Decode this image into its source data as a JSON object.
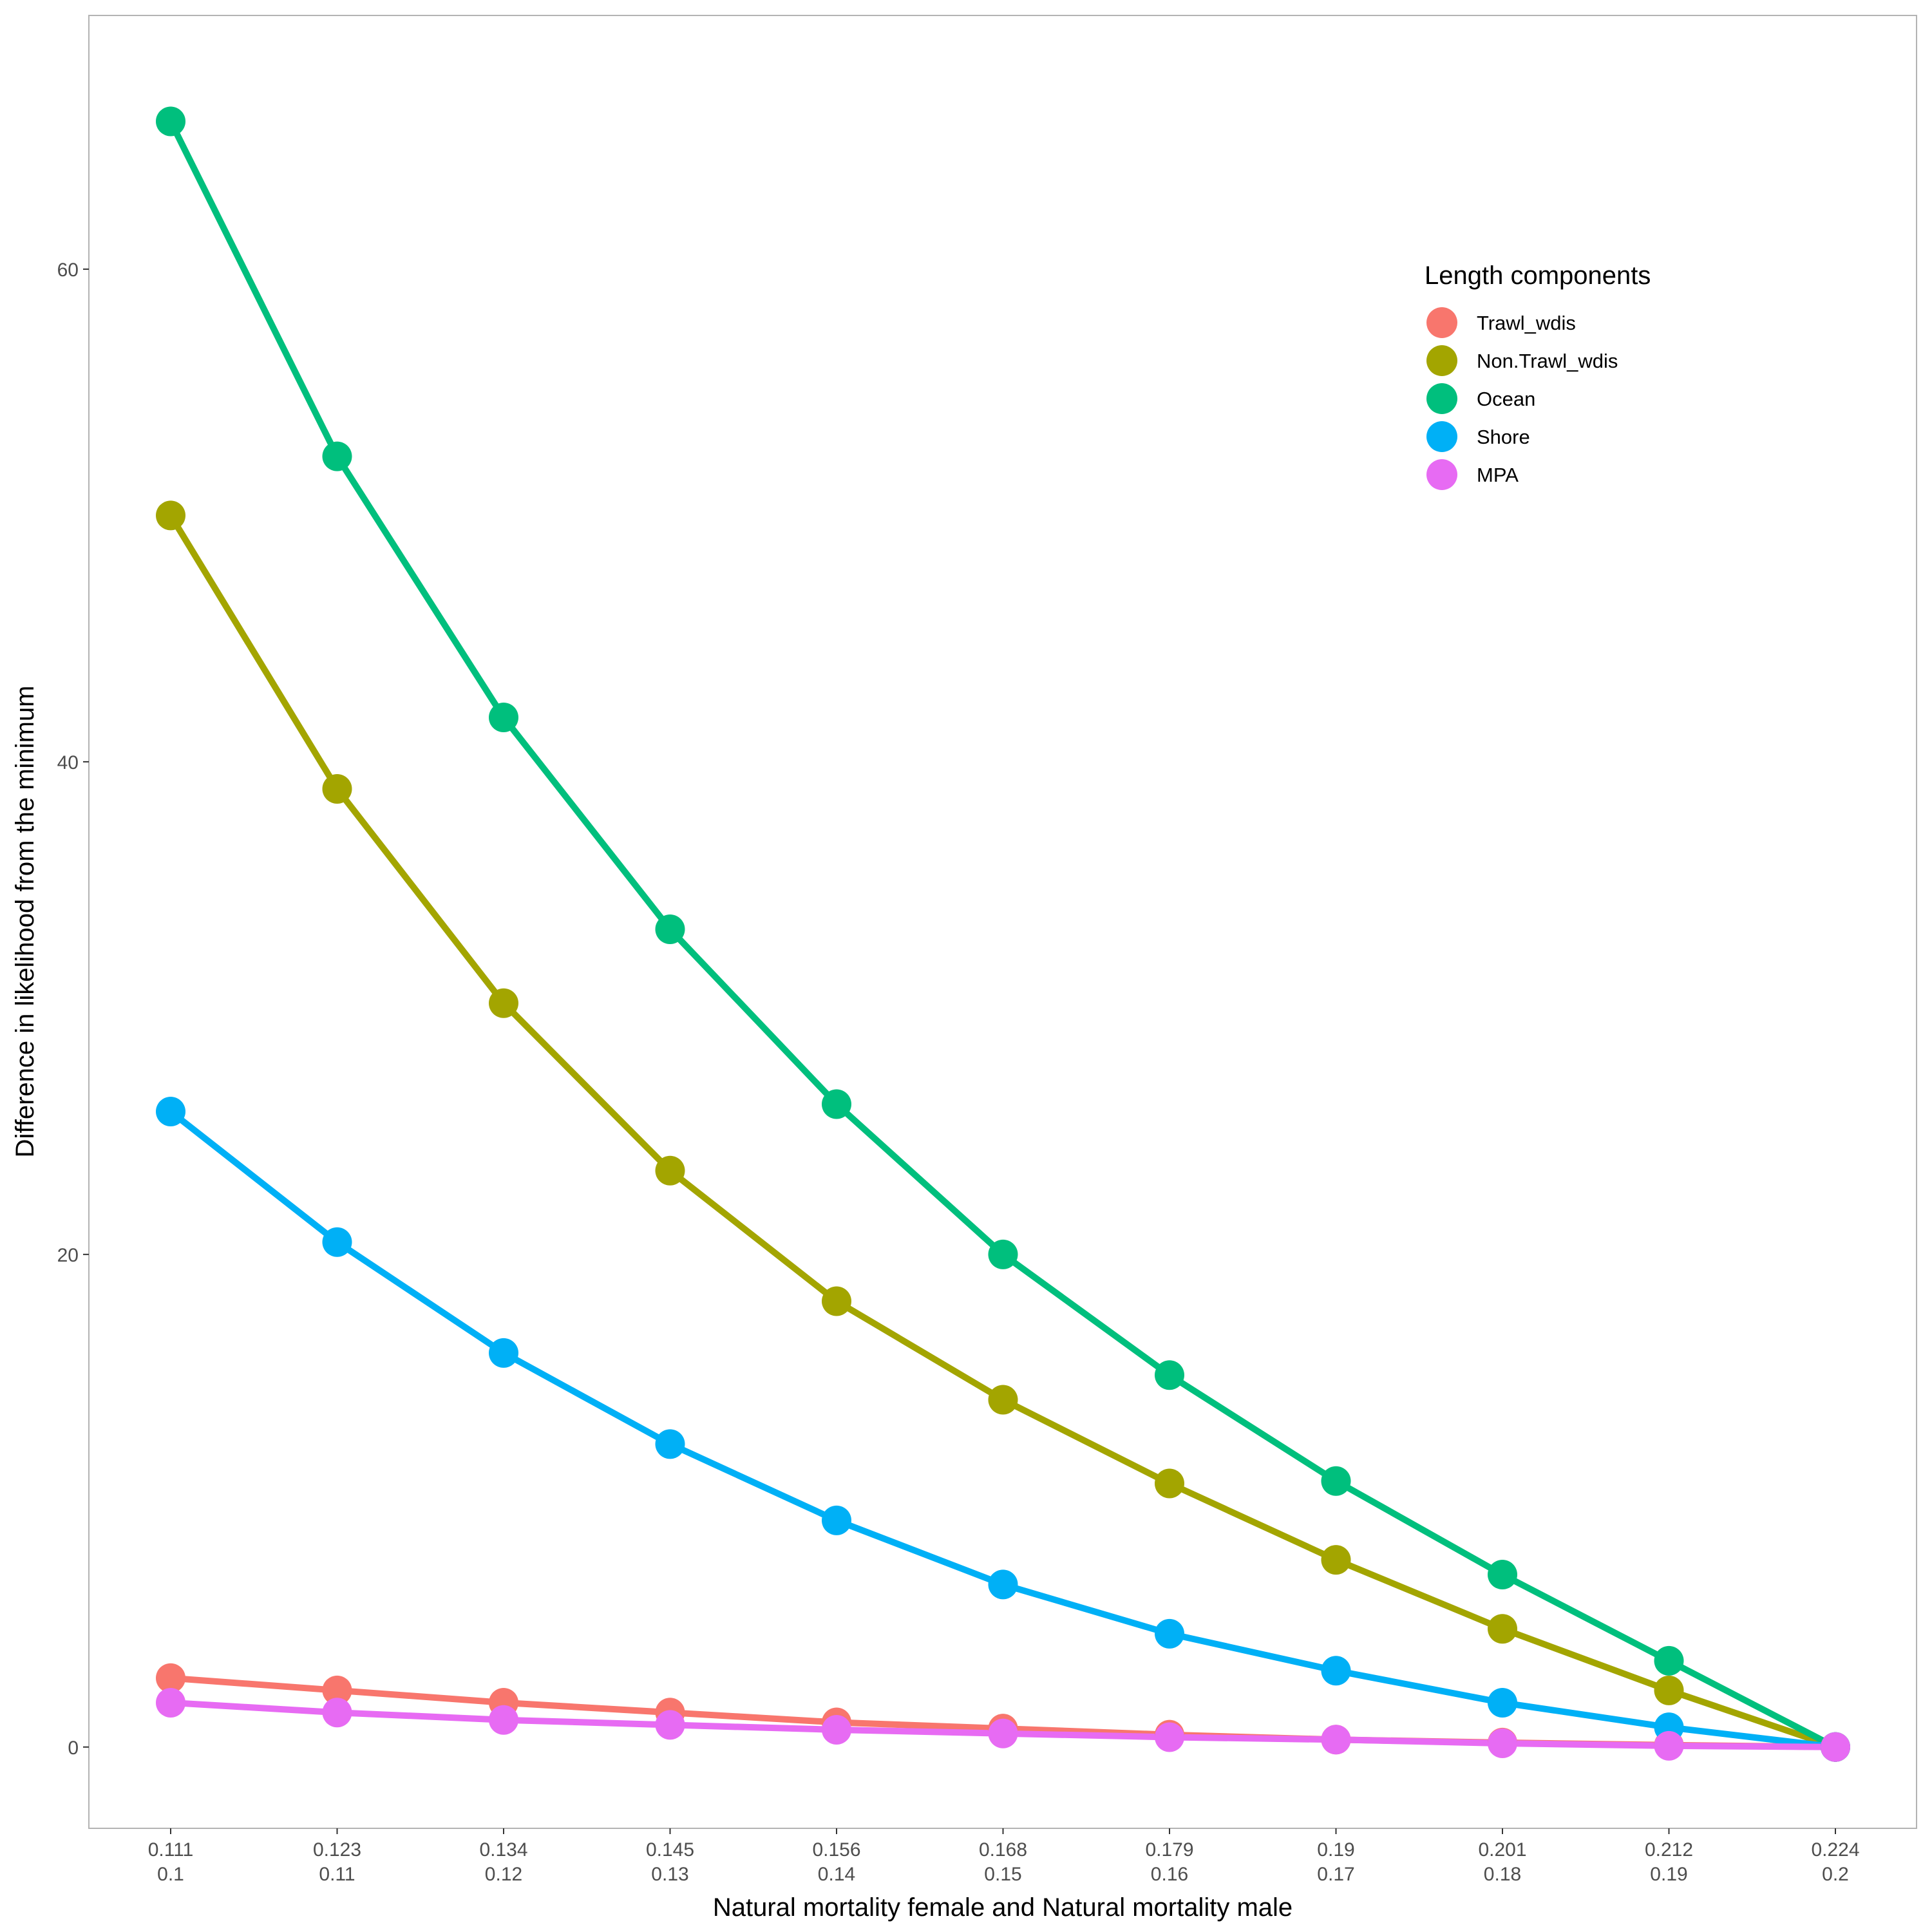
{
  "chart_data": {
    "type": "line",
    "xlabel": "Natural mortality female and Natural mortality male",
    "ylabel": "Difference in likelihood from the minimum",
    "categories_line1": [
      "0.111",
      "0.123",
      "0.134",
      "0.145",
      "0.156",
      "0.168",
      "0.179",
      "0.19",
      "0.201",
      "0.212",
      "0.224"
    ],
    "categories_line2": [
      "0.1",
      "0.11",
      "0.12",
      "0.13",
      "0.14",
      "0.15",
      "0.16",
      "0.17",
      "0.18",
      "0.19",
      "0.2"
    ],
    "y_ticks": [
      0,
      20,
      40,
      60
    ],
    "ylim": [
      -3.3,
      70.3
    ],
    "grid": false,
    "legend": {
      "title": "Length components",
      "position": "top-right inside"
    },
    "series": [
      {
        "name": "Trawl_wdis",
        "color": "#F8766D",
        "values": [
          2.8,
          2.3,
          1.8,
          1.4,
          1.0,
          0.75,
          0.5,
          0.3,
          0.18,
          0.08,
          0
        ]
      },
      {
        "name": "Non.Trawl_wdis",
        "color": "#A3A500",
        "values": [
          50.0,
          38.9,
          30.2,
          23.4,
          18.1,
          14.1,
          10.7,
          7.6,
          4.8,
          2.3,
          0
        ]
      },
      {
        "name": "Ocean",
        "color": "#00BF7D",
        "values": [
          66.0,
          52.4,
          41.8,
          33.2,
          26.1,
          20.0,
          15.1,
          10.8,
          7.0,
          3.5,
          0
        ]
      },
      {
        "name": "Shore",
        "color": "#00B0F6",
        "values": [
          25.8,
          20.5,
          16.0,
          12.3,
          9.2,
          6.6,
          4.6,
          3.1,
          1.8,
          0.8,
          0
        ]
      },
      {
        "name": "MPA",
        "color": "#E76BF3",
        "values": [
          1.8,
          1.4,
          1.1,
          0.9,
          0.7,
          0.55,
          0.4,
          0.3,
          0.15,
          0.05,
          0
        ]
      }
    ]
  }
}
